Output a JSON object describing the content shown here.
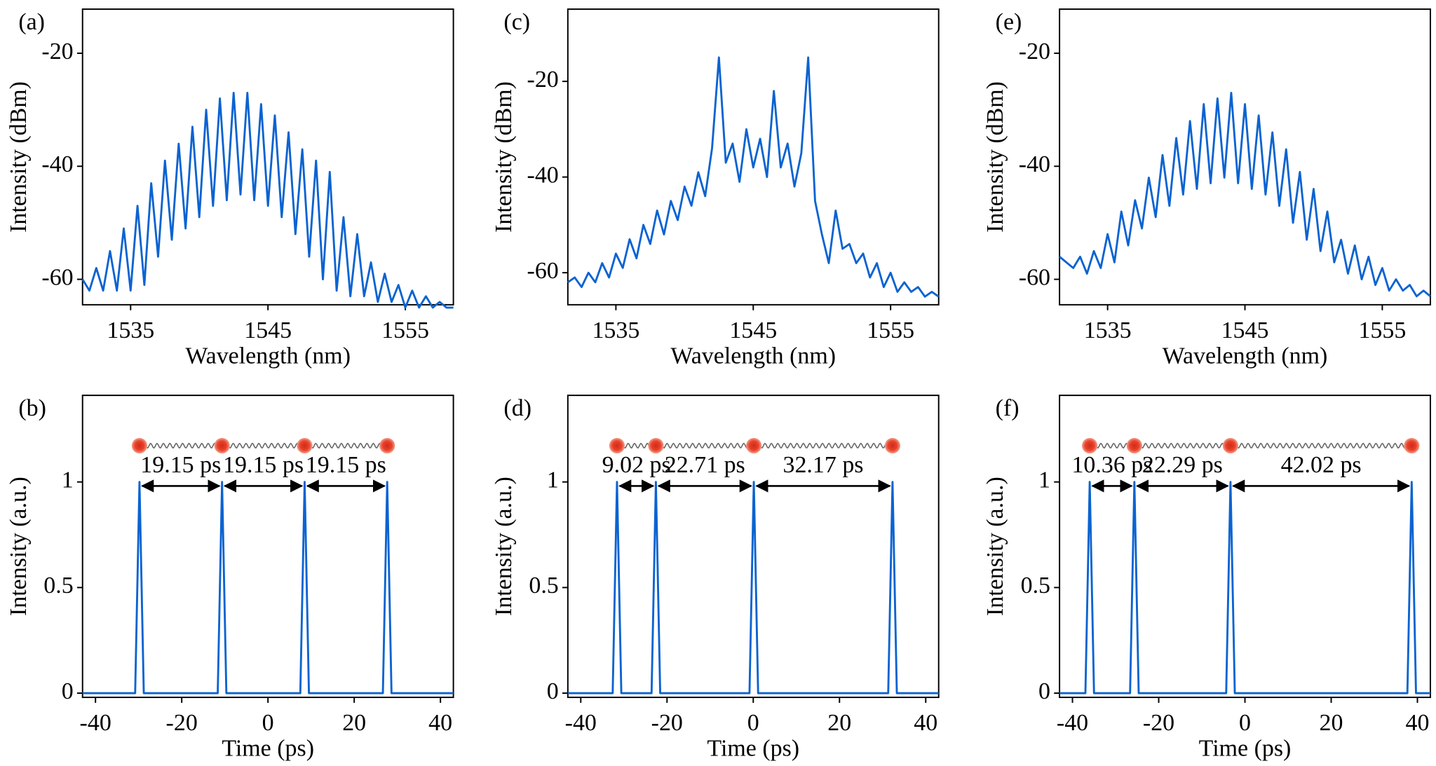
{
  "chart_data": [
    {
      "type": "line",
      "label": "(a)",
      "xlabel": "Wavelength (nm)",
      "ylabel": "Intensity (dBm)",
      "xlim": [
        1531.5,
        1558.5
      ],
      "ylim": [
        -64.5,
        -12.2
      ],
      "xticks": [
        1535,
        1545,
        1555
      ],
      "yticks": [
        -20,
        -40,
        -60
      ],
      "series": [
        {
          "color": "#0b63d1",
          "x": [
            1531.5,
            1532,
            1532.5,
            1533,
            1533.5,
            1534,
            1534.5,
            1535,
            1535.5,
            1536,
            1536.5,
            1537,
            1537.5,
            1538,
            1538.5,
            1539,
            1539.5,
            1540,
            1540.5,
            1541,
            1541.5,
            1542,
            1542.5,
            1543,
            1543.5,
            1544,
            1544.5,
            1545,
            1545.5,
            1546,
            1546.5,
            1547,
            1547.5,
            1548,
            1548.5,
            1549,
            1549.5,
            1550,
            1550.5,
            1551,
            1551.5,
            1552,
            1552.5,
            1553,
            1553.5,
            1554,
            1554.5,
            1555,
            1555.5,
            1556,
            1556.5,
            1557,
            1557.5,
            1558,
            1558.5
          ],
          "values": [
            -60,
            -62,
            -58,
            -62,
            -55,
            -62,
            -51,
            -62,
            -47,
            -61,
            -43,
            -56,
            -39,
            -53,
            -36,
            -51,
            -33,
            -49,
            -30,
            -47,
            -28,
            -46,
            -27,
            -45,
            -27,
            -46,
            -29,
            -47,
            -31,
            -49,
            -34,
            -52,
            -37,
            -56,
            -39,
            -60,
            -41,
            -62,
            -49,
            -63,
            -52,
            -63,
            -57,
            -64,
            -59,
            -64,
            -61,
            -65,
            -62,
            -65,
            -63,
            -65,
            -64,
            -65,
            -65
          ]
        }
      ]
    },
    {
      "type": "pulses",
      "label": "(b)",
      "xlabel": "Time (ps)",
      "ylabel": "Intensity (a.u.)",
      "xlim": [
        -43,
        43
      ],
      "ylim": [
        -0.02,
        1.41
      ],
      "xticks": [
        -40,
        -20,
        0,
        20,
        40
      ],
      "yticks": [
        0,
        0.5,
        1
      ],
      "series": [
        {
          "color": "#0b63d1",
          "x": [
            -43,
            -30.8,
            -29.8,
            -28.8,
            -11.65,
            -10.65,
            -9.65,
            7.5,
            8.5,
            9.5,
            26.65,
            27.65,
            28.65,
            43
          ],
          "values": [
            0,
            0,
            1,
            0,
            0,
            1,
            0,
            0,
            1,
            0,
            0,
            1,
            0,
            0
          ]
        }
      ],
      "annotations": [
        {
          "text": "19.15 ps",
          "x1": -29.8,
          "x2": -10.65
        },
        {
          "text": "19.15 ps",
          "x1": -10.65,
          "x2": 8.5
        },
        {
          "text": "19.15 ps",
          "x1": 8.5,
          "x2": 27.65
        }
      ]
    },
    {
      "type": "line",
      "label": "(c)",
      "xlabel": "Wavelength (nm)",
      "ylabel": "Intensity (dBm)",
      "xlim": [
        1531.5,
        1558.5
      ],
      "ylim": [
        -66.7,
        -4.9
      ],
      "xticks": [
        1535,
        1545,
        1555
      ],
      "yticks": [
        -20,
        -40,
        -60
      ],
      "series": [
        {
          "color": "#0b63d1",
          "x": [
            1531.5,
            1532,
            1532.5,
            1533,
            1533.5,
            1534,
            1534.5,
            1535,
            1535.5,
            1536,
            1536.5,
            1537,
            1537.5,
            1538,
            1538.5,
            1539,
            1539.5,
            1540,
            1540.5,
            1541,
            1541.5,
            1542,
            1542.5,
            1543,
            1543.5,
            1544,
            1544.5,
            1545,
            1545.5,
            1546,
            1546.5,
            1547,
            1547.5,
            1548,
            1548.5,
            1549,
            1549.5,
            1550,
            1550.5,
            1551,
            1551.5,
            1552,
            1552.5,
            1553,
            1553.5,
            1554,
            1554.5,
            1555,
            1555.5,
            1556,
            1556.5,
            1557,
            1557.5,
            1558,
            1558.5
          ],
          "values": [
            -62,
            -61,
            -63,
            -60,
            -62,
            -58,
            -61,
            -56,
            -59,
            -53,
            -57,
            -50,
            -54,
            -47,
            -52,
            -45,
            -49,
            -42,
            -46,
            -39,
            -44,
            -34,
            -15,
            -37,
            -33,
            -41,
            -30,
            -38,
            -32,
            -40,
            -22,
            -38,
            -33,
            -42,
            -35,
            -15,
            -45,
            -52,
            -58,
            -47,
            -55,
            -54,
            -58,
            -56,
            -61,
            -58,
            -63,
            -60,
            -64,
            -62,
            -64,
            -63,
            -65,
            -64,
            -65
          ]
        }
      ]
    },
    {
      "type": "pulses",
      "label": "(d)",
      "xlabel": "Time (ps)",
      "ylabel": "Intensity (a.u.)",
      "xlim": [
        -43,
        43
      ],
      "ylim": [
        -0.02,
        1.41
      ],
      "xticks": [
        -40,
        -20,
        0,
        20,
        40
      ],
      "yticks": [
        0,
        0.5,
        1
      ],
      "series": [
        {
          "color": "#0b63d1",
          "x": [
            -43,
            -32.6,
            -31.6,
            -30.6,
            -23.58,
            -22.58,
            -21.58,
            -0.87,
            0.13,
            1.13,
            31.3,
            32.3,
            33.3,
            43
          ],
          "values": [
            0,
            0,
            1,
            0,
            0,
            1,
            0,
            0,
            1,
            0,
            0,
            1,
            0,
            0
          ]
        }
      ],
      "annotations": [
        {
          "text": "9.02 ps",
          "x1": -31.6,
          "x2": -22.58
        },
        {
          "text": "22.71 ps",
          "x1": -22.58,
          "x2": 0.13
        },
        {
          "text": "32.17 ps",
          "x1": 0.13,
          "x2": 32.3
        }
      ]
    },
    {
      "type": "line",
      "label": "(e)",
      "xlabel": "Wavelength (nm)",
      "ylabel": "Intensity (dBm)",
      "xlim": [
        1531.5,
        1558.5
      ],
      "ylim": [
        -64.5,
        -12.2
      ],
      "xticks": [
        1535,
        1545,
        1555
      ],
      "yticks": [
        -20,
        -40,
        -60
      ],
      "series": [
        {
          "color": "#0b63d1",
          "x": [
            1531.5,
            1532,
            1532.5,
            1533,
            1533.5,
            1534,
            1534.5,
            1535,
            1535.5,
            1536,
            1536.5,
            1537,
            1537.5,
            1538,
            1538.5,
            1539,
            1539.5,
            1540,
            1540.5,
            1541,
            1541.5,
            1542,
            1542.5,
            1543,
            1543.5,
            1544,
            1544.5,
            1545,
            1545.5,
            1546,
            1546.5,
            1547,
            1547.5,
            1548,
            1548.5,
            1549,
            1549.5,
            1550,
            1550.5,
            1551,
            1551.5,
            1552,
            1552.5,
            1553,
            1553.5,
            1554,
            1554.5,
            1555,
            1555.5,
            1556,
            1556.5,
            1557,
            1557.5,
            1558,
            1558.5
          ],
          "values": [
            -56,
            -57,
            -58,
            -56,
            -59,
            -55,
            -58,
            -52,
            -57,
            -48,
            -54,
            -46,
            -51,
            -42,
            -49,
            -38,
            -47,
            -35,
            -45,
            -32,
            -44,
            -29,
            -43,
            -28,
            -42,
            -27,
            -43,
            -29,
            -44,
            -31,
            -45,
            -34,
            -47,
            -37,
            -50,
            -41,
            -53,
            -44,
            -55,
            -48,
            -57,
            -53,
            -59,
            -54,
            -60,
            -56,
            -61,
            -58,
            -62,
            -60,
            -62,
            -61,
            -63,
            -62,
            -63
          ]
        }
      ]
    },
    {
      "type": "pulses",
      "label": "(f)",
      "xlabel": "Time (ps)",
      "ylabel": "Intensity (a.u.)",
      "xlim": [
        -43,
        43
      ],
      "ylim": [
        -0.02,
        1.41
      ],
      "xticks": [
        -40,
        -20,
        0,
        20,
        40
      ],
      "yticks": [
        0,
        0.5,
        1
      ],
      "series": [
        {
          "color": "#0b63d1",
          "x": [
            -43,
            -37,
            -36,
            -35,
            -26.64,
            -25.64,
            -24.64,
            -4.35,
            -3.35,
            -2.35,
            37.67,
            38.67,
            39.67,
            43
          ],
          "values": [
            0,
            0,
            1,
            0,
            0,
            1,
            0,
            0,
            1,
            0,
            0,
            1,
            0,
            0
          ]
        }
      ],
      "annotations": [
        {
          "text": "10.36 ps",
          "x1": -36,
          "x2": -25.64
        },
        {
          "text": "22.29 ps",
          "x1": -25.64,
          "x2": -3.35
        },
        {
          "text": "42.02 ps",
          "x1": -3.35,
          "x2": 38.67
        }
      ]
    }
  ]
}
